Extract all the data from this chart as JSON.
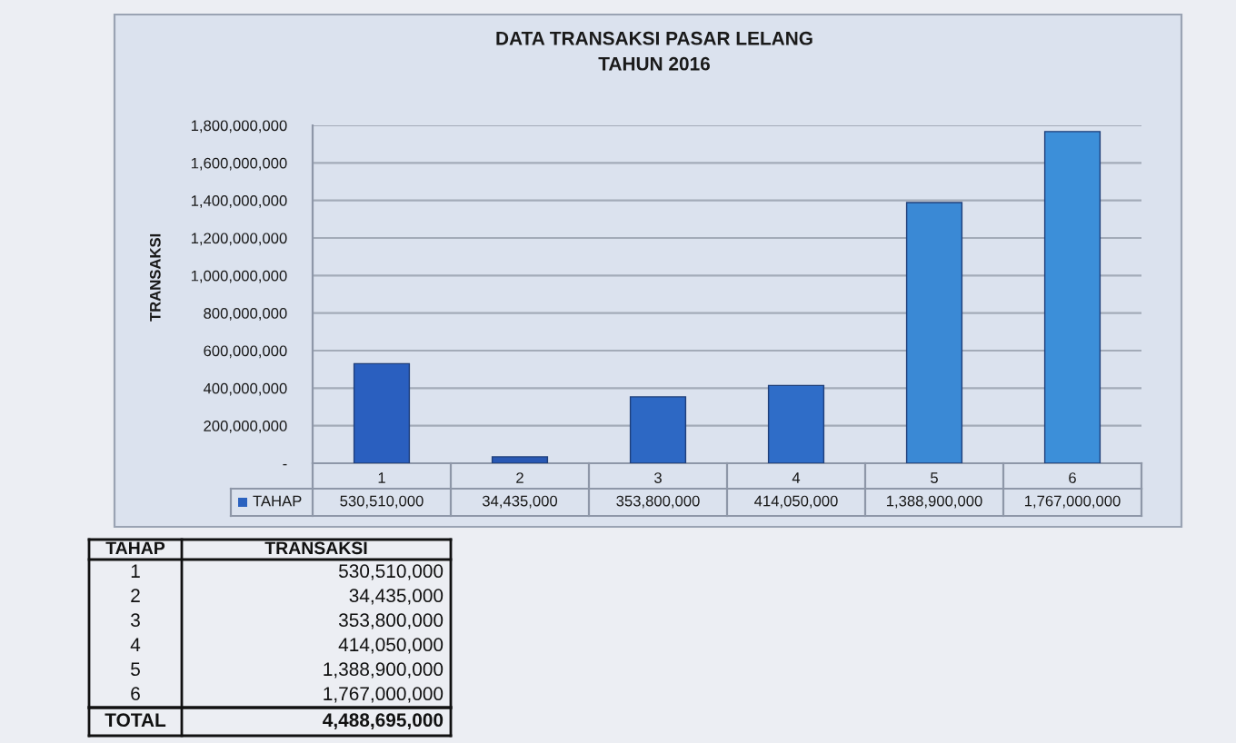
{
  "chart_data": {
    "type": "bar",
    "title": "DATA TRANSAKSI PASAR LELANG",
    "subtitle": "TAHUN 2016",
    "ylabel": "TRANSAKSI",
    "categories": [
      "1",
      "2",
      "3",
      "4",
      "5",
      "6"
    ],
    "series": [
      {
        "name": "TAHAP",
        "color": "#2b62bf",
        "colors": [
          "#2a5fbf",
          "#2858b4",
          "#2d68c4",
          "#2f6dc8",
          "#3a89d5",
          "#3c8fd9"
        ],
        "values": [
          530510000,
          34435000,
          353800000,
          414050000,
          1388900000,
          1767000000
        ],
        "value_labels": [
          "530,510,000",
          "34,435,000",
          "353,800,000",
          "414,050,000",
          "1,388,900,000",
          "1,767,000,000"
        ]
      }
    ],
    "ylim": [
      0,
      1800000000
    ],
    "yticks": [
      {
        "value": 0,
        "label": "-"
      },
      {
        "value": 200000000,
        "label": "200,000,000"
      },
      {
        "value": 400000000,
        "label": "400,000,000"
      },
      {
        "value": 600000000,
        "label": "600,000,000"
      },
      {
        "value": 800000000,
        "label": "800,000,000"
      },
      {
        "value": 1000000000,
        "label": "1,000,000,000"
      },
      {
        "value": 1200000000,
        "label": "1,200,000,000"
      },
      {
        "value": 1400000000,
        "label": "1,400,000,000"
      },
      {
        "value": 1600000000,
        "label": "1,600,000,000"
      },
      {
        "value": 1800000000,
        "label": "1,800,000,000"
      }
    ],
    "grid": "y",
    "legend": "bottom",
    "annotations": [
      "TOTAL",
      "4,488,695,000"
    ]
  }
}
